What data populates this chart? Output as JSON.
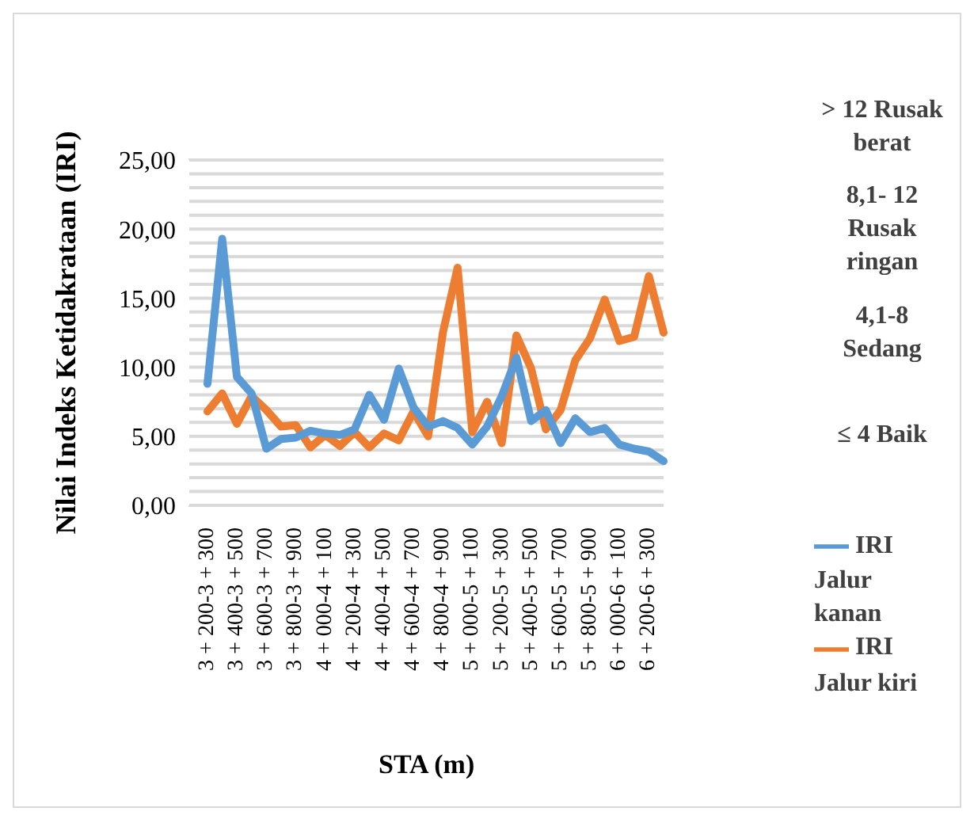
{
  "chart_data": {
    "type": "line",
    "xlabel": "STA (m)",
    "ylabel": "Nilai Indeks Ketidakrataan (IRI)",
    "categories": [
      "3 + 200-3 + 300",
      null,
      "3 + 400-3 + 500",
      null,
      "3 + 600-3 + 700",
      null,
      "3 + 800-3 + 900",
      null,
      "4 + 000-4 + 100",
      null,
      "4 + 200-4 + 300",
      null,
      "4 + 400-4 + 500",
      null,
      "4 + 600-4 + 700",
      null,
      "4 + 800-4 + 900",
      null,
      "5 + 000-5 + 100",
      null,
      "5 + 200-5 + 300",
      null,
      "5 + 400-5 + 500",
      null,
      "5 + 600-5 + 700",
      null,
      "5 + 800-5 + 900",
      null,
      "6 + 000-6 + 100",
      null,
      "6 + 200-6 + 300",
      null
    ],
    "series": [
      {
        "name": "IRI Jalur kiri",
        "color": "#ed7d31",
        "values": [
          6.8,
          8.1,
          5.9,
          7.9,
          6.9,
          5.7,
          5.8,
          4.2,
          5.1,
          4.3,
          5.3,
          4.2,
          5.2,
          4.7,
          6.8,
          5.0,
          12.5,
          17.2,
          5.3,
          7.5,
          4.5,
          12.3,
          9.9,
          5.5,
          6.9,
          10.5,
          12.1,
          14.9,
          11.9,
          12.2,
          16.6,
          12.5
        ]
      },
      {
        "name": "IRI Jalur kanan",
        "color": "#5b9bd5",
        "values": [
          8.8,
          19.3,
          9.3,
          8.1,
          4.1,
          4.8,
          4.9,
          5.4,
          5.2,
          5.1,
          5.5,
          8.0,
          6.2,
          9.9,
          7.1,
          5.7,
          6.1,
          5.6,
          4.4,
          5.7,
          7.9,
          10.7,
          6.1,
          6.9,
          4.5,
          6.3,
          5.3,
          5.6,
          4.4,
          4.1,
          3.9,
          3.2
        ]
      }
    ],
    "ylim": [
      0,
      25
    ],
    "yticks": [
      {
        "value": 0,
        "label": "0,00"
      },
      {
        "value": 1,
        "label": null
      },
      {
        "value": 2,
        "label": null
      },
      {
        "value": 3,
        "label": null
      },
      {
        "value": 4,
        "label": null
      },
      {
        "value": 5,
        "label": "5,00"
      },
      {
        "value": 6,
        "label": null
      },
      {
        "value": 7,
        "label": null
      },
      {
        "value": 8,
        "label": null
      },
      {
        "value": 9,
        "label": null
      },
      {
        "value": 10,
        "label": "10,00"
      },
      {
        "value": 11,
        "label": null
      },
      {
        "value": 12,
        "label": null
      },
      {
        "value": 13,
        "label": null
      },
      {
        "value": 14,
        "label": null
      },
      {
        "value": 15,
        "label": "15,00"
      },
      {
        "value": 16,
        "label": null
      },
      {
        "value": 17,
        "label": null
      },
      {
        "value": 18,
        "label": null
      },
      {
        "value": 19,
        "label": null
      },
      {
        "value": 20,
        "label": "20,00"
      },
      {
        "value": 21,
        "label": null
      },
      {
        "value": 22,
        "label": null
      },
      {
        "value": 23,
        "label": null
      },
      {
        "value": 24,
        "label": null
      },
      {
        "value": 25,
        "label": "25,00"
      }
    ],
    "annotations": [
      "> 12 Rusak berat",
      "8,1- 12 Rusak ringan",
      "4,1-8 Sedang",
      "≤ 4 Baik"
    ],
    "grid": "y",
    "legend": "right",
    "line_style": "solid"
  }
}
